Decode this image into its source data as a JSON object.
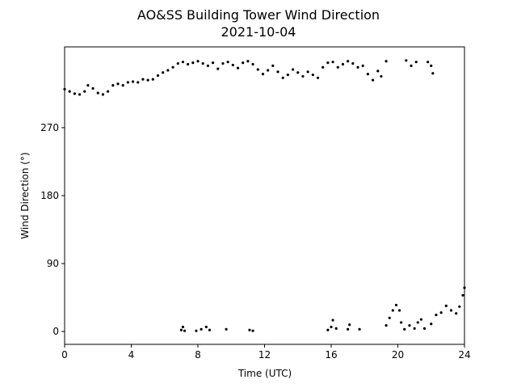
{
  "chart_data": {
    "type": "scatter",
    "title": "AO&SS Building Tower Wind Direction",
    "subtitle": "2021-10-04",
    "x_label": "Time (UTC)",
    "y_label": "Wind Direction (°)",
    "xlim": [
      0,
      24
    ],
    "ylim": [
      -17,
      377
    ],
    "xticks": [
      0,
      4,
      8,
      12,
      16,
      20,
      24
    ],
    "yticks": [
      0,
      90,
      180,
      270
    ],
    "series": [
      {
        "color": "#000000",
        "x": [
          0,
          0.3,
          0.6,
          0.9,
          1.2,
          1.4,
          1.7,
          2.0,
          2.3,
          2.6,
          2.9,
          3.2,
          3.5,
          3.8,
          4.1,
          4.4,
          4.7,
          5.0,
          5.3,
          5.6,
          5.9,
          6.2,
          6.5,
          6.8,
          7.1,
          7.4,
          7.7,
          8.0,
          8.3,
          8.6,
          8.9,
          9.2,
          9.5,
          9.8,
          10.1,
          10.4,
          10.7,
          11.0,
          11.3,
          11.6,
          11.9,
          12.2,
          12.5,
          12.8,
          13.1,
          13.4,
          13.7,
          14.0,
          14.3,
          14.6,
          14.9,
          15.2,
          15.5,
          15.8,
          16.1,
          16.4,
          16.7,
          17.0,
          17.3,
          17.6,
          17.9,
          18.2,
          18.5,
          18.8,
          19.0,
          19.3,
          20.5,
          20.8,
          21.1,
          21.8,
          22.0,
          22.1,
          7.0,
          7.1,
          7.2,
          7.9,
          8.2,
          8.5,
          8.7,
          9.7,
          11.1,
          11.3,
          15.8,
          16.0,
          16.1,
          16.3,
          17.0,
          17.1,
          17.7,
          19.3,
          19.5,
          19.7,
          19.9,
          20.1,
          20.2,
          20.4,
          20.7,
          21.0,
          21.2,
          21.4,
          21.6,
          22.0,
          22.3,
          22.6,
          22.9,
          23.2,
          23.5,
          23.7,
          23.9,
          24.0
        ],
        "values": [
          321,
          318,
          315,
          314,
          318,
          326,
          322,
          316,
          314,
          318,
          326,
          328,
          326,
          330,
          331,
          330,
          334,
          333,
          334,
          339,
          343,
          346,
          350,
          355,
          357,
          354,
          356,
          358,
          355,
          352,
          356,
          348,
          355,
          357,
          353,
          349,
          356,
          358,
          354,
          347,
          341,
          346,
          352,
          344,
          336,
          340,
          347,
          343,
          338,
          344,
          340,
          336,
          350,
          356,
          357,
          350,
          354,
          358,
          355,
          350,
          352,
          341,
          333,
          345,
          338,
          358,
          359,
          352,
          357,
          357,
          352,
          342,
          2,
          6,
          1,
          1,
          3,
          6,
          2,
          3,
          2,
          1,
          2,
          6,
          15,
          4,
          3,
          9,
          3,
          8,
          18,
          28,
          35,
          28,
          12,
          3,
          8,
          4,
          12,
          16,
          4,
          10,
          22,
          25,
          34,
          28,
          24,
          33,
          48,
          58
        ]
      }
    ]
  }
}
